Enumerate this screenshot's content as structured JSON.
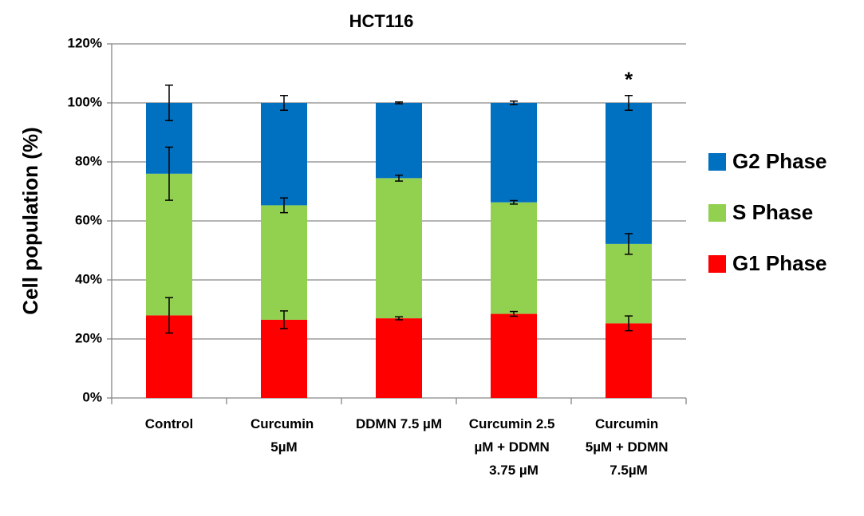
{
  "chart_data": {
    "type": "stacked_bar",
    "title": "HCT116",
    "ylabel": "Cell population (%)",
    "categories": [
      "Control",
      "Curcumin 5µM",
      "DDMN 7.5 µM",
      "Curcumin 2.5 µM + DDMN 3.75 µM",
      "Curcumin 5µM + DDMN 7.5µM"
    ],
    "series": [
      {
        "name": "G1 Phase",
        "color": "#ff0000",
        "values": [
          28,
          26.5,
          27,
          28.5,
          25.3
        ],
        "errors": [
          6,
          3,
          0.5,
          0.8,
          2.5
        ]
      },
      {
        "name": "S Phase",
        "color": "#92d050",
        "values": [
          48,
          38.8,
          47.5,
          37.8,
          26.9
        ],
        "errors": [
          9,
          2.5,
          1,
          0.6,
          3.5
        ]
      },
      {
        "name": "G2 Phase",
        "color": "#0070c0",
        "values": [
          24,
          34.7,
          25.5,
          33.7,
          47.8
        ],
        "errors": [
          6,
          2.5,
          0.3,
          0.6,
          2.5
        ]
      }
    ],
    "annotation": "*",
    "ylim": [
      0,
      120
    ],
    "yticks": [
      {
        "value": 0,
        "label": "0%"
      },
      {
        "value": 20,
        "label": "20%"
      },
      {
        "value": 40,
        "label": "40%"
      },
      {
        "value": 60,
        "label": "60%"
      },
      {
        "value": 80,
        "label": "80%"
      },
      {
        "value": 100,
        "label": "100%"
      },
      {
        "value": 120,
        "label": "120%"
      }
    ],
    "grid": true,
    "legend": "right"
  }
}
